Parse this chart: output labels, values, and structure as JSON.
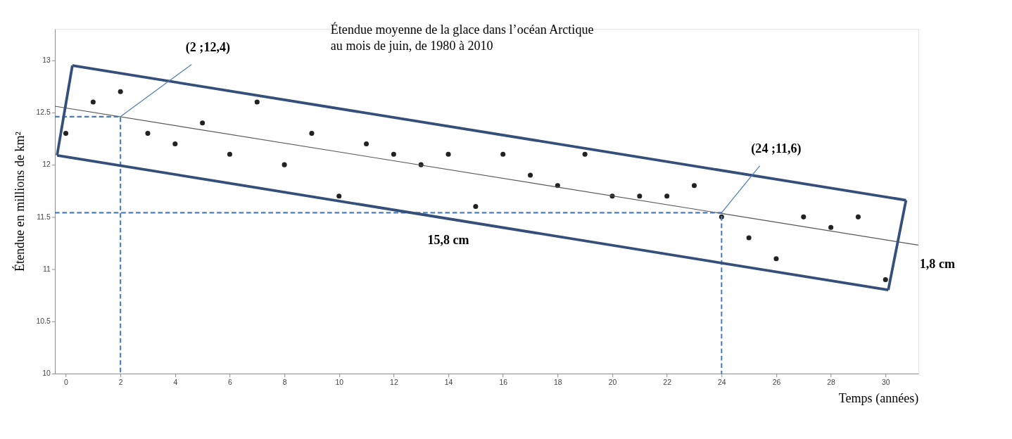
{
  "chart_data": {
    "type": "scatter",
    "title": "Étendue moyenne de la glace dans l’océan Arctique\nau  mois de juin, de 1980 à 2010",
    "xlabel": "Temps (années)",
    "ylabel": "Étendue en millions de km²",
    "xlim": [
      -0.4,
      31.2
    ],
    "ylim": [
      10,
      13.3
    ],
    "xticks": [
      0,
      2,
      4,
      6,
      8,
      10,
      12,
      14,
      16,
      18,
      20,
      22,
      24,
      26,
      28,
      30
    ],
    "yticks": [
      10,
      10.5,
      11,
      11.5,
      12,
      12.5,
      13
    ],
    "grid": false,
    "series": [
      {
        "marker": "circle",
        "color": "#222222",
        "x": [
          0,
          1,
          2,
          3,
          4,
          5,
          6,
          7,
          8,
          9,
          10,
          11,
          12,
          13,
          14,
          15,
          16,
          17,
          18,
          19,
          20,
          21,
          22,
          23,
          24,
          25,
          26,
          27,
          28,
          29,
          30
        ],
        "values": [
          12.3,
          12.6,
          12.7,
          12.3,
          12.2,
          12.4,
          12.1,
          12.6,
          12.0,
          12.3,
          11.7,
          12.2,
          12.1,
          12.0,
          12.1,
          11.6,
          12.1,
          11.9,
          11.8,
          12.1,
          11.7,
          11.7,
          11.7,
          11.8,
          11.5,
          11.3,
          11.1,
          11.5,
          11.4,
          11.5,
          10.9
        ]
      },
      {
        "type": "line",
        "color": "#555555",
        "line_style": "solid",
        "x": [
          -0.4,
          31.2
        ],
        "values": [
          12.56,
          11.23
        ]
      },
      {
        "type": "line",
        "color": "#4a7ebb",
        "line_style": "dashed",
        "x": [
          -0.4,
          2,
          2
        ],
        "values": [
          12.46,
          12.46,
          10
        ]
      },
      {
        "type": "line",
        "color": "#4a7ebb",
        "line_style": "dashed",
        "x": [
          -0.4,
          24,
          24
        ],
        "values": [
          11.54,
          11.54,
          10
        ]
      },
      {
        "type": "line",
        "color": "#34507a",
        "line_style": "solid",
        "x": [
          0.24,
          30.75
        ],
        "values": [
          12.95,
          11.66
        ]
      },
      {
        "type": "line",
        "color": "#34507a",
        "line_style": "solid",
        "x": [
          30.1,
          30.75
        ],
        "values": [
          10.8,
          11.66
        ]
      },
      {
        "type": "line",
        "color": "#34507a",
        "line_style": "solid",
        "x": [
          -0.32,
          30.1
        ],
        "values": [
          12.09,
          10.8
        ]
      },
      {
        "type": "line",
        "color": "#34507a",
        "line_style": "solid",
        "x": [
          -0.32,
          0.24
        ],
        "values": [
          12.09,
          12.95
        ]
      }
    ],
    "annotations": [
      {
        "text": "(2 ;12,4)",
        "x": 2,
        "y": 12.46
      },
      {
        "text": "(24 ;11,6)",
        "x": 24,
        "y": 11.54
      },
      "15,8 cm",
      "1,8 cm"
    ]
  }
}
